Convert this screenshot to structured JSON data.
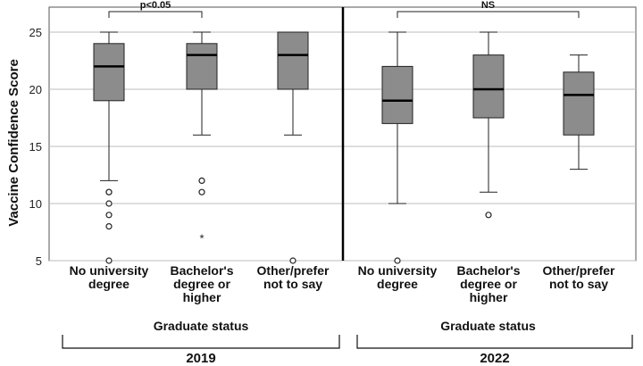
{
  "chart_data": {
    "type": "box",
    "ylabel": "Vaccine Confidence Score",
    "ylim": [
      5,
      26.5
    ],
    "yticks": [
      5,
      10,
      15,
      20,
      25
    ],
    "grid": true,
    "box_color": "#8c8c8c",
    "panels": [
      {
        "year": "2019",
        "group_label": "Graduate status",
        "categories": [
          {
            "label_lines": [
              "No university",
              "degree"
            ],
            "whisker_low": 12,
            "q1": 19,
            "median": 22,
            "q3": 24,
            "whisker_high": 25,
            "outliers": [
              11,
              11,
              10,
              9,
              8,
              5
            ],
            "extremes": []
          },
          {
            "label_lines": [
              "Bachelor's",
              "degree or",
              "higher"
            ],
            "whisker_low": 16,
            "q1": 20,
            "median": 23,
            "q3": 24,
            "whisker_high": 25,
            "outliers": [
              12,
              11
            ],
            "extremes": [
              7
            ]
          },
          {
            "label_lines": [
              "Other/prefer",
              "not to say"
            ],
            "whisker_low": 16,
            "q1": 20,
            "median": 23,
            "q3": 25,
            "whisker_high": 25,
            "outliers": [
              5
            ],
            "extremes": []
          }
        ],
        "significance": {
          "label": "p<0.05",
          "from": 0,
          "to": 1
        }
      },
      {
        "year": "2022",
        "group_label": "Graduate status",
        "categories": [
          {
            "label_lines": [
              "No university",
              "degree"
            ],
            "whisker_low": 10,
            "q1": 17,
            "median": 19,
            "q3": 22,
            "whisker_high": 25,
            "outliers": [
              5
            ],
            "extremes": []
          },
          {
            "label_lines": [
              "Bachelor's",
              "degree or",
              "higher"
            ],
            "whisker_low": 11,
            "q1": 17.5,
            "median": 20,
            "q3": 23,
            "whisker_high": 25,
            "outliers": [
              9
            ],
            "extremes": []
          },
          {
            "label_lines": [
              "Other/prefer",
              "not to say"
            ],
            "whisker_low": 13,
            "q1": 16,
            "median": 19.5,
            "q3": 21.5,
            "whisker_high": 23,
            "outliers": [],
            "extremes": []
          }
        ],
        "significance": {
          "label": "NS",
          "from": 0,
          "to": 2
        }
      }
    ]
  }
}
